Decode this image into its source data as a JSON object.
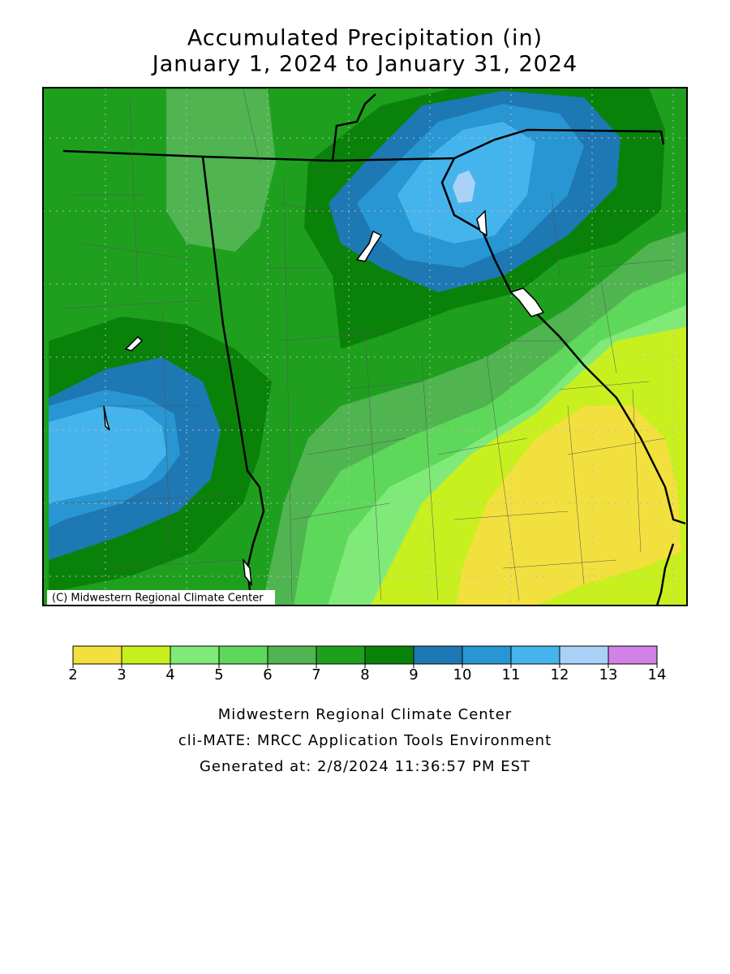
{
  "title": [
    "Accumulated Precipitation (in)",
    "January 1, 2024 to January 31, 2024"
  ],
  "legend": {
    "bins": [
      2,
      3,
      4,
      5,
      6,
      7,
      8,
      9,
      10,
      11,
      12,
      13,
      14
    ],
    "colors": [
      "#f2e03e",
      "#c8f01e",
      "#80ea78",
      "#5ed85a",
      "#50b450",
      "#1ea01e",
      "#0a820a",
      "#1e78b4",
      "#2896d2",
      "#46b4ec",
      "#aad2f8",
      "#d282e6"
    ]
  },
  "credit": "(C) Midwestern Regional Climate Center",
  "footer": [
    "Midwestern Regional Climate Center",
    "cli-MATE: MRCC Application Tools Environment",
    "Generated at: 2/8/2024 11:36:57 PM EST"
  ]
}
